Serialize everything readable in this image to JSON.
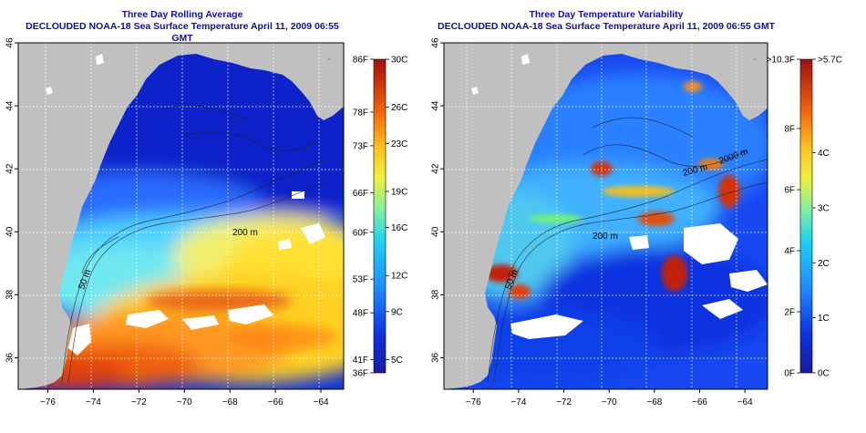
{
  "chart_data": [
    {
      "type": "heatmap",
      "title": "Three Day Rolling Average",
      "subtitle": "DECLOUDED NOAA-18 Sea Surface Temperature April 11, 2009 06:55 GMT",
      "xlabel": "",
      "ylabel": "",
      "x_ticks": [
        "-76",
        "-74",
        "-72",
        "-70",
        "-68",
        "-66",
        "-64"
      ],
      "y_ticks": [
        "46",
        "44",
        "42",
        "40",
        "38",
        "36"
      ],
      "xlim": [
        -77.3,
        -63.0
      ],
      "ylim": [
        35.0,
        46.0
      ],
      "contour_labels": [
        "200 m",
        "50 m"
      ],
      "colorbar": {
        "range_c": [
          3.9,
          30
        ],
        "left_labels": [
          "86F",
          "78F",
          "73F",
          "66F",
          "60F",
          "53F",
          "48F",
          "41F",
          "36F"
        ],
        "left_values_c": [
          30,
          25.6,
          22.8,
          18.9,
          15.6,
          11.7,
          8.9,
          5.0,
          2.2
        ],
        "right_labels": [
          "30C",
          "26C",
          "23C",
          "19C",
          "16C",
          "12C",
          "9C",
          "5C"
        ],
        "right_values_c": [
          30,
          26,
          23,
          19,
          16,
          12,
          9,
          5
        ]
      }
    },
    {
      "type": "heatmap",
      "title": "Three Day Temperature Variability",
      "subtitle": "DECLOUDED NOAA-18 Sea Surface Temperature April 11, 2009 06:55 GMT",
      "xlabel": "",
      "ylabel": "",
      "x_ticks": [
        "-76",
        "-74",
        "-72",
        "-70",
        "-68",
        "-66",
        "-64"
      ],
      "y_ticks": [
        "46",
        "44",
        "42",
        "40",
        "38",
        "36"
      ],
      "xlim": [
        -77.3,
        -63.0
      ],
      "ylim": [
        35.0,
        46.0
      ],
      "contour_labels": [
        "200 m",
        "2000 m",
        "200 m",
        "50 m"
      ],
      "colorbar": {
        "range_c": [
          0,
          5.7
        ],
        "left_labels": [
          ">10.3F",
          "8F",
          "6F",
          "4F",
          "2F",
          "0F"
        ],
        "left_values_c": [
          5.7,
          4.44,
          3.33,
          2.22,
          1.11,
          0
        ],
        "right_labels": [
          ">5.7C",
          "4C",
          "3C",
          "2C",
          "1C",
          "0C"
        ],
        "right_values_c": [
          5.7,
          4,
          3,
          2,
          1,
          0
        ]
      }
    }
  ]
}
